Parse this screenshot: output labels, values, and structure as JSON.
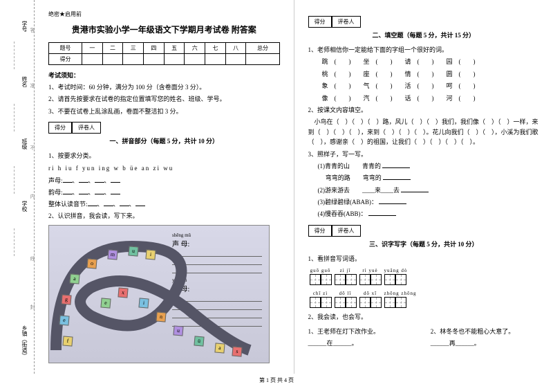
{
  "secret": "绝密★启用前",
  "title": "贵港市实验小学一年级语文下学期月考试卷 附答案",
  "scoreHeaders": [
    "题号",
    "一",
    "二",
    "三",
    "四",
    "五",
    "六",
    "七",
    "八",
    "总分"
  ],
  "scoreRow": "得分",
  "notice": "考试须知：",
  "rules": [
    "1、考试时间：60 分钟，满分为 100 分（含卷面分 3 分）。",
    "2、请首先按要求在试卷的指定位置填写您的姓名、班级、学号。",
    "3、不要在试卷上乱涂乱画，卷面不整洁扣 3 分。"
  ],
  "scoreBox": {
    "a": "得分",
    "b": "评卷人"
  },
  "sec1": {
    "title": "一、拼音部分（每题 5 分，共计 10 分）"
  },
  "q1_1": "1、按要求分类。",
  "letters": "ri  h  iu  f  yun  ing  w  b  üe  an  zi  wu",
  "shengmu": "声母:",
  "yunmu": "韵母:",
  "zhengti": "整体认读音节:",
  "q1_2": "2、认识拼音，我会读，写下来。",
  "imgLabels": {
    "shengmu": "声 母:",
    "shengmuPy": "shēng mǔ",
    "yunmu": "韵 母:",
    "yunmuPy": "yùn  mǔ"
  },
  "sec2": {
    "title": "二、填空题（每题 5 分，共计 15 分）"
  },
  "q2_1": "1、老师相信你一定能给下面的字组一个很好的词。",
  "pairs": [
    [
      "跳",
      "坐",
      "请",
      "园"
    ],
    [
      "桃",
      "座",
      "情",
      "圆"
    ],
    [
      "象",
      "气",
      "活",
      "呵"
    ],
    [
      "像",
      "汽",
      "话",
      "河"
    ]
  ],
  "q2_2": "2、按课文内容填空。",
  "q2_2_text": "小鸟在（　）（　）（　）路，风儿（　）（　）我们，我们像（　）（　）一样，来到（　）（　）（　），来到（　）（　）（　）。花儿向我们（　）（　），小溪为我们歌（　），感谢亲（　）的祖国，让我们（　）（　）（　）（　）。",
  "q2_3": "3、照样子，写一写。",
  "q2_3_items": [
    "(1)青青的山　　青青的",
    "　 弯弯的路　　弯弯的",
    "(2)游来游去　　____来____去",
    "(3)碧绿碧绿(ABAB)：",
    "(4)慢吞吞(ABB)："
  ],
  "sec3": {
    "title": "三、识字写字（每题 5 分，共计 10 分）"
  },
  "q3_1": "1、看拼音写词语。",
  "pinyinTop": [
    "guō  guǒ",
    "zì  jǐ",
    "rì  yuè",
    "yuǎng  dò"
  ],
  "pinyinBot": [
    "chī  zì",
    "dō  lǐ",
    "dō  xī",
    "zhōng  zhōng"
  ],
  "q3_2": "2、我会读，也会写。",
  "q3_2a": "1、王老师在灯下改作业。",
  "q3_2b": "2、林冬冬也不能粗心大意了。",
  "q3_2a2": "______在______。",
  "q3_2b2": "______再______。",
  "footer": "第 1 页  共 4 页",
  "margin": {
    "l1": "学号",
    "l2": "姓名",
    "l3": "班级",
    "l4": "学校",
    "l5": "乡镇（街道）",
    "i1": "答",
    "i2": "准",
    "i3": "不",
    "i4": "内",
    "i5": "线",
    "i6": "封"
  }
}
